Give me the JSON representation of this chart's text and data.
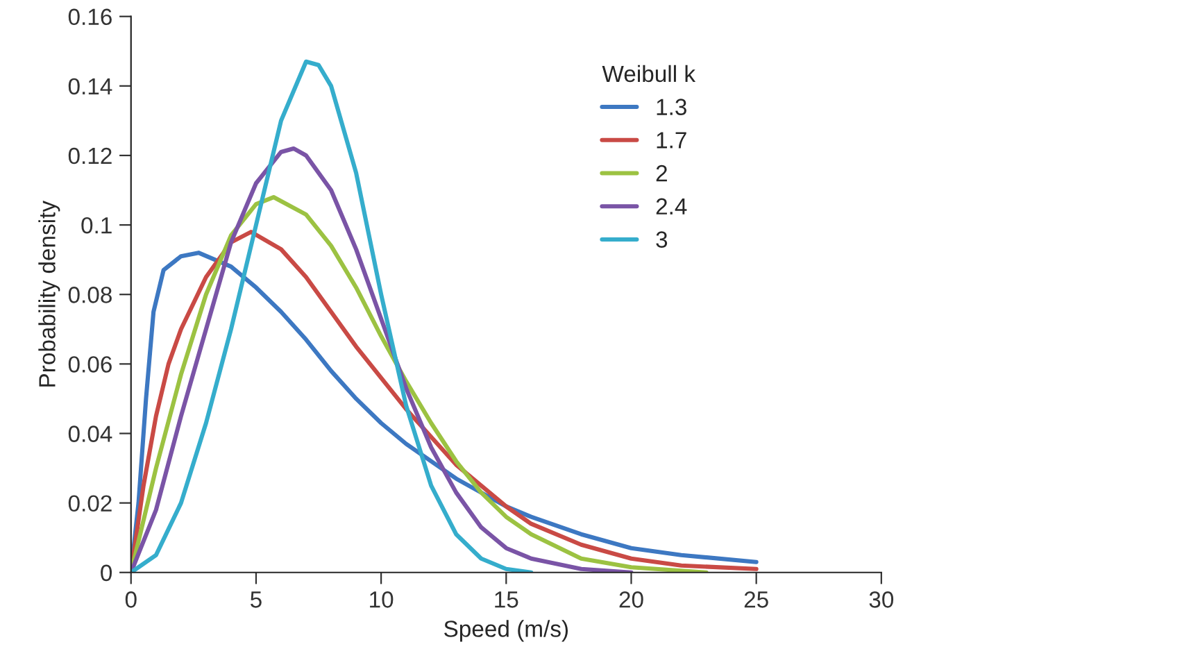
{
  "chart_data": {
    "type": "line",
    "xlabel": "Speed (m/s)",
    "ylabel": "Probability density",
    "legend_title": "Weibull k",
    "legend": "top right",
    "grid": false,
    "marker": "none",
    "line_style": "solid",
    "xlim": [
      0,
      30
    ],
    "xticks": [
      0,
      5,
      10,
      15,
      20,
      25,
      30
    ],
    "ylim": [
      0,
      0.16
    ],
    "yticks": [
      {
        "value": 0,
        "label": "0"
      },
      {
        "value": 0.02,
        "label": "0.02"
      },
      {
        "value": 0.04,
        "label": "0.04"
      },
      {
        "value": 0.06,
        "label": "0.06"
      },
      {
        "value": 0.08,
        "label": "0.08"
      },
      {
        "value": 0.1,
        "label": "0.1"
      },
      {
        "value": 0.12,
        "label": "0.12"
      },
      {
        "value": 0.14,
        "label": "0.14"
      },
      {
        "value": 0.16,
        "label": "0.16"
      }
    ],
    "series": [
      {
        "name": "1.3",
        "color": "#3d78c2",
        "x": [
          0,
          0.3,
          0.6,
          0.9,
          1.3,
          2,
          2.7,
          4,
          5,
          6,
          7,
          8,
          9,
          10,
          11,
          12,
          13,
          14,
          15,
          16,
          18,
          20,
          22,
          25
        ],
        "values": [
          0,
          0.02,
          0.05,
          0.075,
          0.087,
          0.091,
          0.092,
          0.088,
          0.082,
          0.075,
          0.067,
          0.058,
          0.05,
          0.043,
          0.037,
          0.032,
          0.027,
          0.023,
          0.019,
          0.016,
          0.011,
          0.007,
          0.005,
          0.003
        ]
      },
      {
        "name": "1.7",
        "color": "#c94a45",
        "x": [
          0,
          0.5,
          1,
          1.5,
          2,
          3,
          4,
          4.8,
          6,
          7,
          8,
          9,
          10,
          11,
          12,
          13,
          14,
          15,
          16,
          18,
          20,
          22,
          25
        ],
        "values": [
          0,
          0.025,
          0.045,
          0.06,
          0.07,
          0.085,
          0.095,
          0.098,
          0.093,
          0.085,
          0.075,
          0.065,
          0.056,
          0.047,
          0.039,
          0.031,
          0.025,
          0.019,
          0.014,
          0.008,
          0.004,
          0.002,
          0.001
        ]
      },
      {
        "name": "2",
        "color": "#9cc242",
        "x": [
          0,
          1,
          2,
          3,
          4,
          5,
          5.7,
          7,
          8,
          9,
          10,
          11,
          12,
          13,
          14,
          15,
          16,
          18,
          20,
          23
        ],
        "values": [
          0,
          0.03,
          0.057,
          0.08,
          0.097,
          0.106,
          0.108,
          0.103,
          0.094,
          0.082,
          0.068,
          0.055,
          0.043,
          0.032,
          0.023,
          0.016,
          0.011,
          0.004,
          0.0015,
          0
        ]
      },
      {
        "name": "2.4",
        "color": "#7a54a6",
        "x": [
          0,
          1,
          2,
          3,
          4,
          5,
          6,
          6.5,
          7,
          8,
          9,
          10,
          11,
          12,
          13,
          14,
          15,
          16,
          18,
          20
        ],
        "values": [
          0,
          0.018,
          0.045,
          0.07,
          0.095,
          0.112,
          0.121,
          0.122,
          0.12,
          0.11,
          0.093,
          0.073,
          0.053,
          0.036,
          0.023,
          0.013,
          0.007,
          0.004,
          0.001,
          0
        ]
      },
      {
        "name": "3",
        "color": "#35adcc",
        "x": [
          0,
          1,
          2,
          3,
          4,
          5,
          6,
          7,
          7.5,
          8,
          9,
          10,
          11,
          12,
          13,
          14,
          15,
          16
        ],
        "values": [
          0,
          0.005,
          0.02,
          0.043,
          0.07,
          0.1,
          0.13,
          0.147,
          0.146,
          0.14,
          0.115,
          0.08,
          0.048,
          0.025,
          0.011,
          0.004,
          0.001,
          0
        ]
      }
    ]
  }
}
